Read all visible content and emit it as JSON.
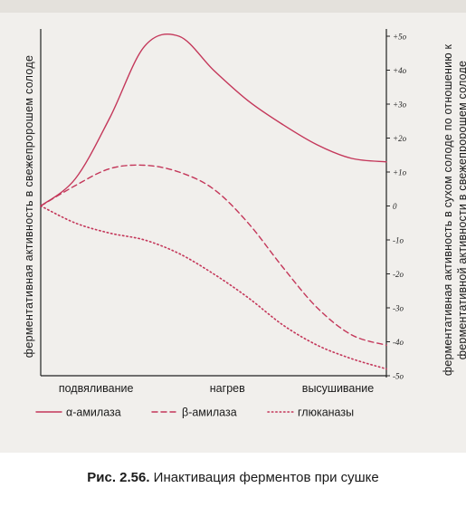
{
  "chart_data": {
    "type": "line",
    "title": "",
    "categories": [
      "подвяливание",
      "нагрев",
      "высушивание"
    ],
    "x": [
      0,
      0.1,
      0.2,
      0.3,
      0.4,
      0.5,
      0.6,
      0.7,
      0.8,
      0.9,
      1.0
    ],
    "ylabel_left": "ферментативная активность в свежепророшем солоде",
    "ylabel_right_lines": [
      "ферментативная активность в сухом солоде по отношению к",
      "ферментативной активности в свежепророшем солоде"
    ],
    "right_ticks": [
      "+5o",
      "+4o",
      "+3o",
      "+2o",
      "+1o",
      "0",
      "-1o",
      "-2o",
      "-3o",
      "-4o",
      "-5o"
    ],
    "ylim": [
      -50,
      50
    ],
    "grid": false,
    "legend_position": "bottom",
    "series": [
      {
        "name": "α-амилаза",
        "style": "solid",
        "color": "#c4375a",
        "values": [
          0,
          8,
          26,
          47,
          50,
          40,
          31,
          24,
          18,
          14,
          13
        ]
      },
      {
        "name": "β-амилаза",
        "style": "dashed",
        "color": "#c4375a",
        "values": [
          0,
          6,
          11,
          12,
          10,
          5,
          -5,
          -18,
          -30,
          -38,
          -41
        ]
      },
      {
        "name": "глюканазы",
        "style": "dotted",
        "color": "#c4375a",
        "values": [
          0,
          -5,
          -8,
          -10,
          -14,
          -20,
          -27,
          -35,
          -41,
          -45,
          -48
        ]
      }
    ]
  },
  "caption": {
    "label": "Рис. 2.56.",
    "text": " Инактивация ферментов при сушке"
  }
}
